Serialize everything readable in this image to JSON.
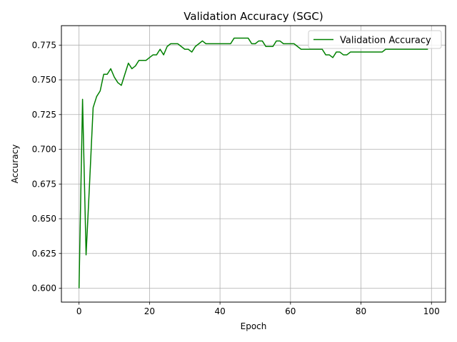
{
  "chart_data": {
    "type": "line",
    "title": "Validation Accuracy (SGC)",
    "xlabel": "Epoch",
    "ylabel": "Accuracy",
    "xlim": [
      -5,
      104
    ],
    "ylim": [
      0.59,
      0.789
    ],
    "xticks": [
      0,
      20,
      40,
      60,
      80,
      100
    ],
    "xtick_labels": [
      "0",
      "20",
      "40",
      "60",
      "80",
      "100"
    ],
    "yticks": [
      0.6,
      0.625,
      0.65,
      0.675,
      0.7,
      0.725,
      0.75,
      0.775
    ],
    "ytick_labels": [
      "0.600",
      "0.625",
      "0.650",
      "0.675",
      "0.700",
      "0.725",
      "0.750",
      "0.775"
    ],
    "grid": true,
    "legend_position": "top-right",
    "series": [
      {
        "name": "Validation Accuracy",
        "color": "#008000",
        "x": [
          0,
          1,
          2,
          3,
          4,
          5,
          6,
          7,
          8,
          9,
          10,
          11,
          12,
          13,
          14,
          15,
          16,
          17,
          18,
          19,
          20,
          21,
          22,
          23,
          24,
          25,
          26,
          27,
          28,
          29,
          30,
          31,
          32,
          33,
          34,
          35,
          36,
          37,
          38,
          39,
          40,
          41,
          42,
          43,
          44,
          45,
          46,
          47,
          48,
          49,
          50,
          51,
          52,
          53,
          54,
          55,
          56,
          57,
          58,
          59,
          60,
          61,
          62,
          63,
          64,
          65,
          66,
          67,
          68,
          69,
          70,
          71,
          72,
          73,
          74,
          75,
          76,
          77,
          78,
          79,
          80,
          81,
          82,
          83,
          84,
          85,
          86,
          87,
          88,
          89,
          90,
          91,
          92,
          93,
          94,
          95,
          96,
          97,
          98,
          99
        ],
        "values": [
          0.6,
          0.736,
          0.624,
          0.676,
          0.73,
          0.738,
          0.742,
          0.754,
          0.754,
          0.758,
          0.752,
          0.748,
          0.746,
          0.754,
          0.762,
          0.758,
          0.76,
          0.764,
          0.764,
          0.764,
          0.766,
          0.768,
          0.768,
          0.772,
          0.768,
          0.774,
          0.776,
          0.776,
          0.776,
          0.774,
          0.772,
          0.772,
          0.77,
          0.774,
          0.776,
          0.778,
          0.776,
          0.776,
          0.776,
          0.776,
          0.776,
          0.776,
          0.776,
          0.776,
          0.78,
          0.78,
          0.78,
          0.78,
          0.78,
          0.776,
          0.776,
          0.778,
          0.778,
          0.774,
          0.774,
          0.774,
          0.778,
          0.778,
          0.776,
          0.776,
          0.776,
          0.776,
          0.774,
          0.772,
          0.772,
          0.772,
          0.772,
          0.772,
          0.772,
          0.772,
          0.768,
          0.768,
          0.766,
          0.77,
          0.77,
          0.768,
          0.768,
          0.77,
          0.77,
          0.77,
          0.77,
          0.77,
          0.77,
          0.77,
          0.77,
          0.77,
          0.77,
          0.772,
          0.772,
          0.772,
          0.772,
          0.772,
          0.772,
          0.772,
          0.772,
          0.772,
          0.772,
          0.772,
          0.772,
          0.772
        ]
      }
    ]
  }
}
